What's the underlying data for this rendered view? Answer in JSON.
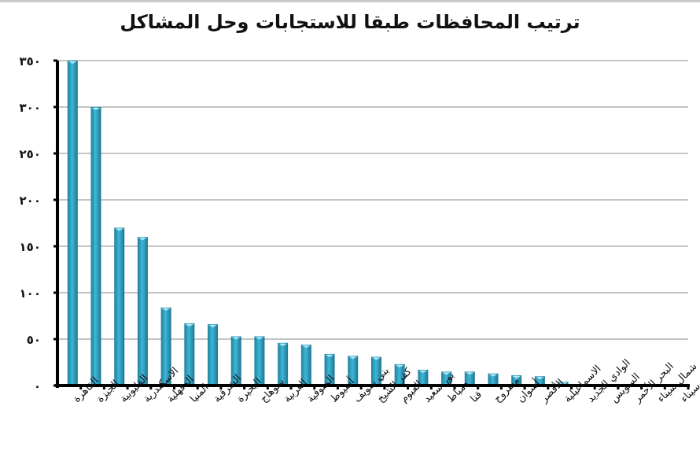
{
  "chart_data": {
    "type": "bar",
    "title": "ترتيب المحافظات طبقا  للاستجابات وحل المشاكل",
    "xlabel": "",
    "ylabel": "",
    "ylim": [
      0,
      350
    ],
    "grid": true,
    "legend": null,
    "yticks": [
      0,
      50,
      100,
      150,
      200,
      250,
      300,
      350
    ],
    "ytick_labels": [
      "٠",
      "٥٠",
      "١٠٠",
      "١٥٠",
      "٢٠٠",
      "٢٥٠",
      "٣٠٠",
      "٣٥٠"
    ],
    "categories": [
      "القاهرة",
      "الجيزة",
      "القليوبية",
      "الاسكندرية",
      "الدقهلية",
      "المنيا",
      "الشرقية",
      "البحيرة",
      "سوهاج",
      "الغربية",
      "المنوفية",
      "أسيوط",
      "بني سويف",
      "كفر الشيخ",
      "الفيوم",
      "بور سعيد",
      "دمياط",
      "قنا",
      "مطروح",
      "أسوان",
      "الأقصر",
      "الاسماعيلية",
      "الوادي الجديد",
      "السويس",
      "البحر الأحمر",
      "شمال سيناء",
      "جنوب سيناء"
    ],
    "values": [
      350,
      300,
      170,
      160,
      84,
      67,
      66,
      53,
      53,
      46,
      44,
      34,
      32,
      31,
      23,
      17,
      15,
      15,
      13,
      11,
      10,
      4,
      0,
      0,
      0,
      0,
      0
    ],
    "bar_color": "#2fa3c4"
  }
}
